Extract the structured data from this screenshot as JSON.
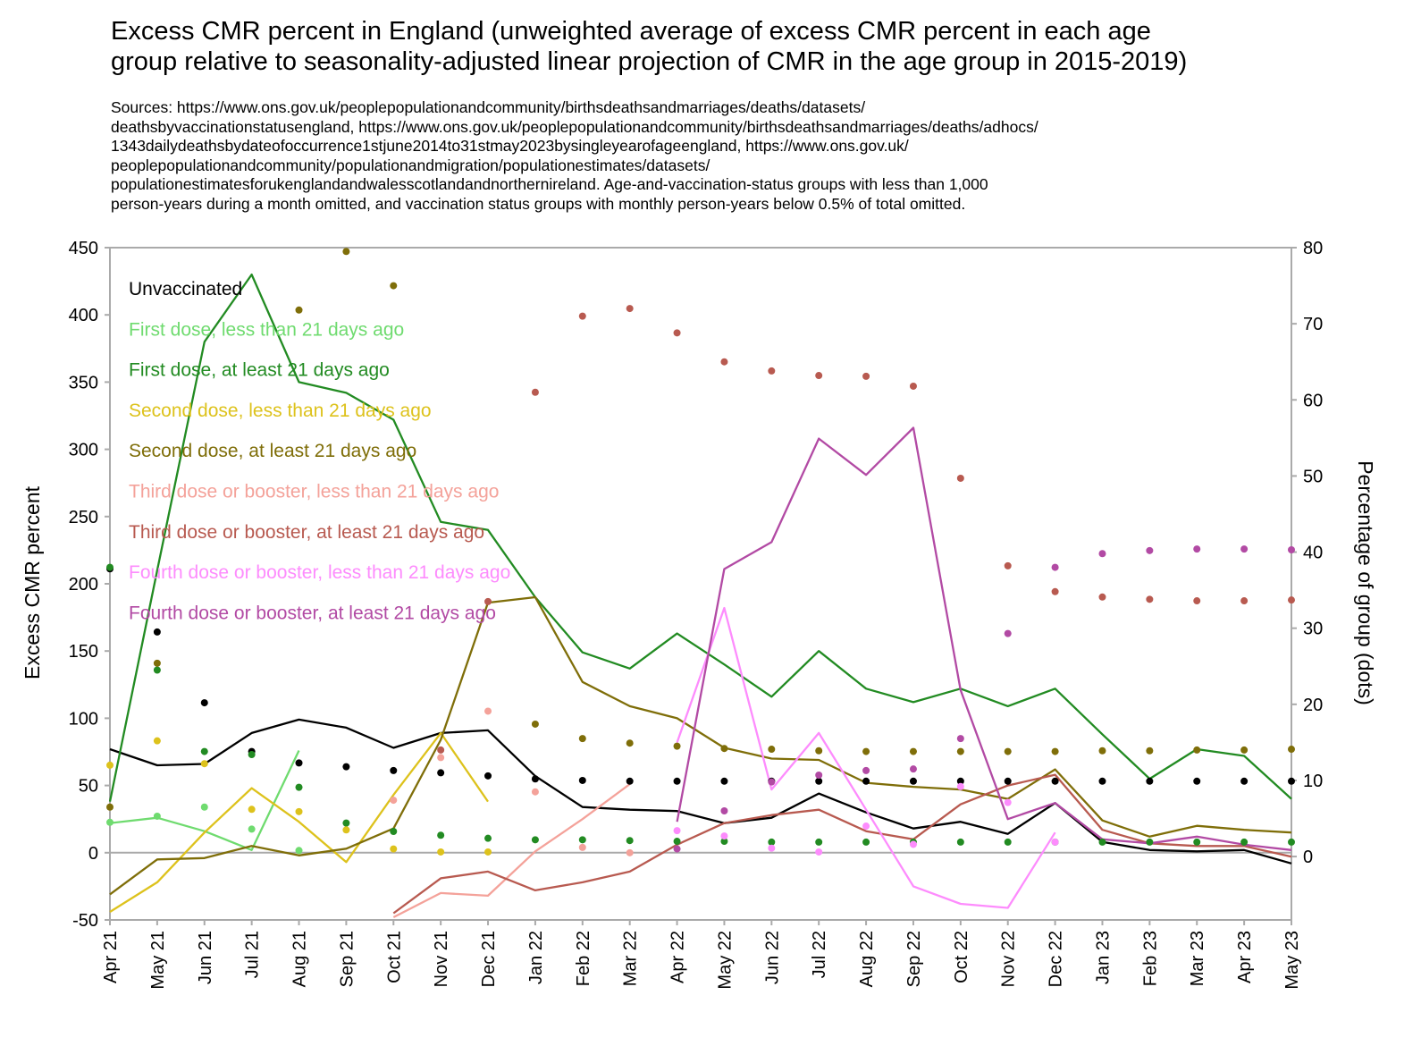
{
  "title_lines": [
    "Excess CMR percent in England (unweighted average of excess CMR percent in each age",
    "group relative to seasonality-adjusted linear projection of CMR in the age group in 2015-2019)"
  ],
  "sources_lines": [
    "Sources: https://www.ons.gov.uk/peoplepopulationandcommunity/birthsdeathsandmarriages/deaths/datasets/",
    "deathsbyvaccinationstatusengland, https://www.ons.gov.uk/peoplepopulationandcommunity/birthsdeathsandmarriages/deaths/adhocs/",
    "1343dailydeathsbydateofoccurrence1stjune2014to31stmay2023bysingleyearofageengland, https://www.ons.gov.uk/",
    "peoplepopulationandcommunity/populationandmigration/populationestimates/datasets/",
    "populationestimatesforukenglandandwalesscotlandandnorthernireland. Age-and-vaccination-status groups with less than 1,000",
    "person-years during a month omitted, and vaccination status groups with monthly person-years below 0.5% of total omitted."
  ],
  "chart_data": {
    "type": "line",
    "ylabel": "Excess CMR percent",
    "y2label": "Percentage of group (dots)",
    "ylim": [
      -50,
      450
    ],
    "y2lim": [
      -8.33,
      80
    ],
    "yticks": [
      "-50",
      "0",
      "50",
      "100",
      "150",
      "200",
      "250",
      "300",
      "350",
      "400",
      "450"
    ],
    "y2ticks": [
      "0",
      "10",
      "20",
      "30",
      "40",
      "50",
      "60",
      "70",
      "80"
    ],
    "legend_position": "top-left",
    "categories": [
      "Apr 21",
      "May 21",
      "Jun 21",
      "Jul 21",
      "Aug 21",
      "Sep 21",
      "Oct 21",
      "Nov 21",
      "Dec 21",
      "Jan 22",
      "Feb 22",
      "Mar 22",
      "Apr 22",
      "May 22",
      "Jun 22",
      "Jul 22",
      "Aug 22",
      "Sep 22",
      "Oct 22",
      "Nov 22",
      "Dec 22",
      "Jan 23",
      "Feb 23",
      "Mar 23",
      "Apr 23",
      "May 23"
    ],
    "series": [
      {
        "name": "Unvaccinated",
        "color": "#000000",
        "line": [
          77,
          65,
          66,
          89,
          99,
          93,
          78,
          89,
          91,
          57,
          34,
          32,
          31,
          22,
          26,
          44,
          30,
          18,
          23,
          14,
          37,
          8,
          2,
          1,
          2,
          -8
        ],
        "dots": [
          37.8,
          29.5,
          20.2,
          13.8,
          12.3,
          11.8,
          11.3,
          11.0,
          10.6,
          10.2,
          10.0,
          9.9,
          9.9,
          9.9,
          9.9,
          9.9,
          9.9,
          9.9,
          9.9,
          9.9,
          9.9,
          9.9,
          9.9,
          9.9,
          9.9,
          9.9
        ]
      },
      {
        "name": "First dose, less than 21 days ago",
        "color": "#6fdb6f",
        "line": [
          22,
          26,
          16,
          2,
          76,
          null,
          null,
          null,
          null,
          null,
          null,
          null,
          null,
          null,
          null,
          null,
          null,
          null,
          null,
          null,
          null,
          null,
          null,
          null,
          null,
          null
        ],
        "dots": [
          4.5,
          5.3,
          6.5,
          3.6,
          0.8,
          null,
          null,
          null,
          null,
          null,
          null,
          null,
          null,
          null,
          null,
          null,
          null,
          null,
          null,
          null,
          null,
          null,
          null,
          null,
          null,
          null
        ]
      },
      {
        "name": "First dose, at least 21 days ago",
        "color": "#228b22",
        "line": [
          38,
          210,
          380,
          430,
          350,
          342,
          322,
          246,
          240,
          190,
          149,
          137,
          163,
          140,
          116,
          150,
          122,
          112,
          122,
          109,
          122,
          88,
          55,
          77,
          72,
          40
        ],
        "dots": [
          38.0,
          24.5,
          13.8,
          13.4,
          9.1,
          4.4,
          3.3,
          2.8,
          2.4,
          2.2,
          2.2,
          2.1,
          2.0,
          2.0,
          1.9,
          1.9,
          1.9,
          1.9,
          1.9,
          1.9,
          1.9,
          1.9,
          1.9,
          1.9,
          1.9,
          1.9
        ]
      },
      {
        "name": "Second dose, less than 21 days ago",
        "color": "#ddc21c",
        "line": [
          -44,
          -22,
          15,
          48,
          23,
          -7,
          43,
          89,
          38,
          null,
          null,
          null,
          null,
          null,
          null,
          null,
          null,
          null,
          null,
          null,
          null,
          null,
          null,
          null,
          null,
          null
        ],
        "dots": [
          12.0,
          15.2,
          12.2,
          6.2,
          5.9,
          3.5,
          1.0,
          0.6,
          0.6,
          null,
          null,
          null,
          null,
          null,
          null,
          null,
          null,
          null,
          null,
          null,
          null,
          null,
          null,
          null,
          null,
          null
        ]
      },
      {
        "name": "Second dose, at least 21 days ago",
        "color": "#7f6e09",
        "line": [
          -31,
          -5,
          -4,
          5,
          -2,
          3,
          18,
          84,
          186,
          190,
          127,
          109,
          100,
          78,
          70,
          69,
          52,
          49,
          47,
          40,
          62,
          24,
          12,
          20,
          17,
          15
        ],
        "dots": [
          6.5,
          25.4,
          null,
          null,
          71.8,
          79.5,
          75.0,
          null,
          null,
          17.4,
          15.5,
          14.9,
          14.5,
          14.2,
          14.1,
          13.9,
          13.8,
          13.8,
          13.8,
          13.8,
          13.8,
          13.9,
          13.9,
          14.0,
          14.0,
          14.1
        ]
      },
      {
        "name": "Third dose or booster, less than 21 days ago",
        "color": "#f4a29a",
        "line": [
          null,
          null,
          null,
          null,
          null,
          null,
          -48,
          -30,
          -32,
          1,
          25,
          51,
          null,
          null,
          null,
          null,
          null,
          null,
          null,
          null,
          null,
          null,
          null,
          null,
          null,
          null
        ],
        "dots": [
          null,
          null,
          null,
          null,
          null,
          null,
          7.4,
          13.0,
          19.1,
          8.5,
          1.2,
          0.5,
          null,
          null,
          null,
          null,
          null,
          null,
          null,
          null,
          null,
          null,
          null,
          null,
          null,
          null
        ]
      },
      {
        "name": "Third dose or booster, at least 21 days ago",
        "color": "#b85a50",
        "line": [
          null,
          null,
          null,
          null,
          null,
          null,
          -45,
          -19,
          -14,
          -28,
          -22,
          -14,
          6,
          22,
          28,
          32,
          16,
          10,
          36,
          50,
          58,
          17,
          7,
          5,
          5,
          -3
        ],
        "dots": [
          null,
          null,
          null,
          null,
          null,
          null,
          null,
          14.0,
          33.5,
          61.0,
          71.0,
          72.0,
          68.8,
          65.0,
          63.8,
          63.2,
          63.1,
          61.8,
          49.7,
          38.2,
          34.8,
          34.1,
          33.8,
          33.6,
          33.6,
          33.7
        ]
      },
      {
        "name": "Fourth dose or booster, less than 21 days ago",
        "color": "#fd8cfd",
        "line": [
          null,
          null,
          null,
          null,
          null,
          null,
          null,
          null,
          null,
          null,
          null,
          null,
          82,
          182,
          47,
          89,
          32,
          -25,
          -38,
          -41,
          15,
          null,
          null,
          null,
          null,
          null
        ],
        "dots": [
          null,
          null,
          null,
          null,
          null,
          null,
          null,
          null,
          null,
          null,
          null,
          null,
          3.4,
          2.7,
          1.1,
          0.6,
          4.0,
          1.6,
          9.2,
          7.1,
          1.9,
          null,
          null,
          null,
          null,
          null
        ]
      },
      {
        "name": "Fourth dose or booster, at least 21 days ago",
        "color": "#b24aa4",
        "line": [
          null,
          null,
          null,
          null,
          null,
          null,
          null,
          null,
          null,
          null,
          null,
          null,
          23,
          211,
          231,
          308,
          281,
          316,
          121,
          25,
          37,
          10,
          7,
          12,
          6,
          2
        ],
        "dots": [
          null,
          null,
          null,
          null,
          null,
          null,
          null,
          null,
          null,
          null,
          null,
          null,
          1.0,
          6.0,
          9.8,
          10.7,
          11.3,
          11.5,
          15.5,
          29.3,
          38.0,
          39.8,
          40.2,
          40.4,
          40.4,
          40.3
        ]
      }
    ]
  }
}
